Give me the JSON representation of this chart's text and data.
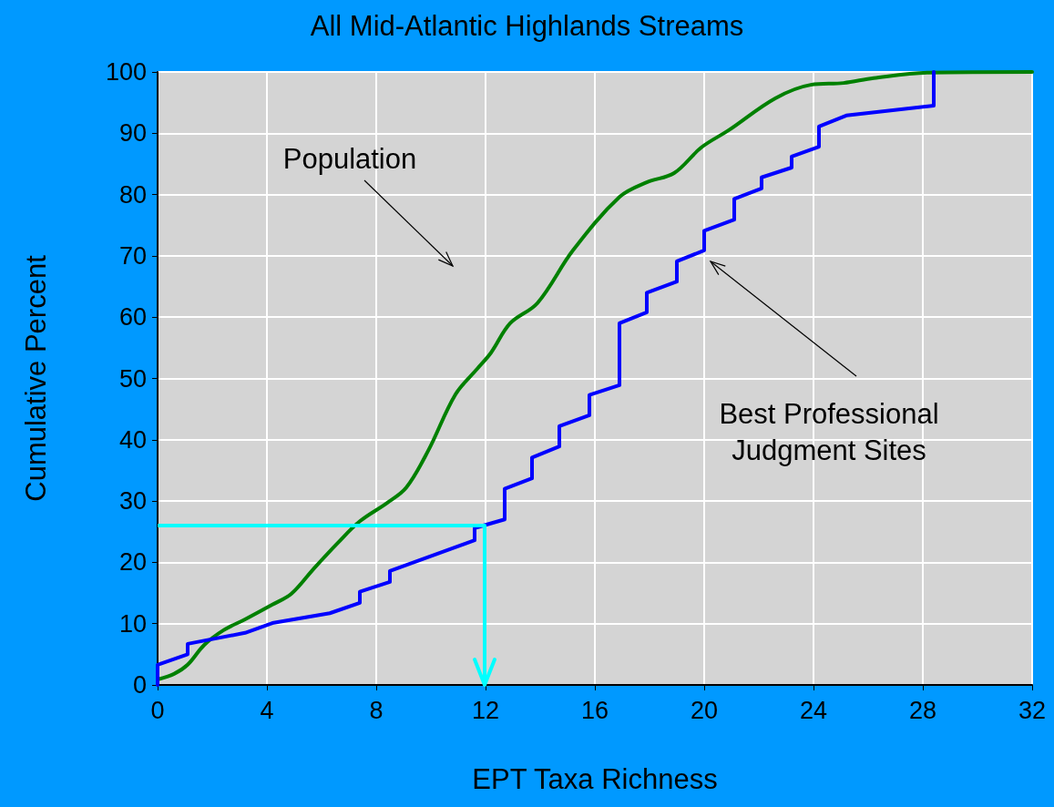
{
  "chart_data": {
    "type": "line",
    "title": "All Mid-Atlantic Highlands Streams",
    "xlabel": "EPT Taxa Richness",
    "ylabel": "Cumulative Percent",
    "xlim": [
      0,
      32
    ],
    "xticks": [
      0,
      4,
      8,
      12,
      16,
      20,
      24,
      28,
      32
    ],
    "ylim": [
      0,
      100
    ],
    "yticks": [
      0,
      10,
      20,
      30,
      40,
      50,
      60,
      70,
      80,
      90,
      100
    ],
    "grid": true,
    "marker": "none",
    "line_style": "solid",
    "series": [
      {
        "color": "#008000",
        "x": [
          0,
          0.6,
          1.1,
          1.7,
          2.4,
          3.2,
          4.2,
          4.9,
          5.7,
          6.6,
          7.4,
          8.4,
          9.1,
          9.9,
          10.9,
          11.7,
          12.2,
          12.9,
          13.9,
          15.2,
          16.9,
          17.9,
          18.9,
          19.9,
          20.9,
          22.6,
          23.9,
          25.1,
          26.2,
          28.2,
          32
        ],
        "values": [
          0.9,
          1.8,
          3.3,
          6.5,
          8.9,
          10.7,
          13.1,
          14.9,
          18.9,
          23.2,
          26.7,
          29.7,
          32.2,
          38.2,
          47.4,
          51.6,
          54.2,
          59,
          62.3,
          70.9,
          79.6,
          82,
          83.5,
          87.7,
          90.5,
          95.7,
          97.9,
          98.2,
          99,
          99.9,
          100
        ]
      },
      {
        "color": "#0000ff",
        "x": [
          0,
          0,
          1.1,
          1.1,
          3.2,
          4.2,
          6.3,
          7.4,
          7.4,
          8.5,
          8.5,
          11.6,
          11.6,
          12.7,
          12.7,
          13.7,
          13.7,
          14.7,
          14.7,
          15.8,
          15.8,
          16.9,
          16.9,
          17.9,
          17.9,
          19,
          19,
          20,
          20,
          21.1,
          21.1,
          22.1,
          22.1,
          23.2,
          23.2,
          24.2,
          24.2,
          25.2,
          28.4,
          28.4
        ],
        "values": [
          0,
          3.3,
          5,
          6.7,
          8.5,
          10.1,
          11.7,
          13.4,
          15.2,
          16.8,
          18.6,
          23.6,
          25.6,
          27,
          32,
          33.7,
          37.1,
          38.9,
          42.2,
          44,
          47.3,
          48.9,
          59,
          60.8,
          64,
          65.8,
          69.1,
          70.9,
          74.1,
          75.9,
          79.3,
          81,
          82.8,
          84.4,
          86.2,
          87.8,
          91.1,
          92.9,
          94.5,
          100
        ]
      }
    ],
    "annotations": [
      "Population",
      "Best Professional Judgment Sites"
    ]
  }
}
